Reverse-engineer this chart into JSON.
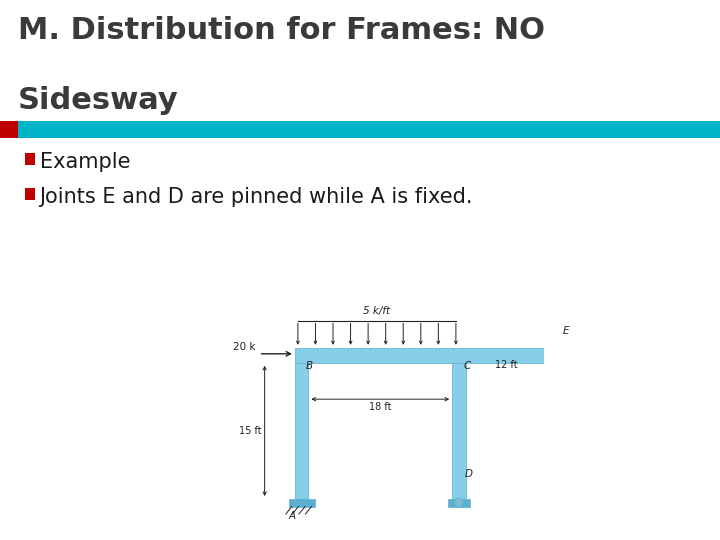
{
  "title_line1": "M. Distribution for Frames: NO",
  "title_line2": "Sidesway",
  "title_color": "#3A3A3A",
  "title_fontsize": 22,
  "accent_bar_color": "#00B4C8",
  "red_square_color": "#C00000",
  "bullet_color": "#C00000",
  "bullet_text1": "Example",
  "bullet_text2": "Joints E and D are pinned while A is fixed.",
  "bullet_fontsize": 15,
  "bg_color": "#FFFFFF",
  "frame_color": "#87CEEB",
  "frame_dark": "#5BAFD0",
  "text_color": "#1A1A1A",
  "dim_18ft": "18 ft",
  "dim_12ft": "12 ft",
  "dim_15ft": "15 ft",
  "load_label": "5 k/ft",
  "force_label": "20 k"
}
